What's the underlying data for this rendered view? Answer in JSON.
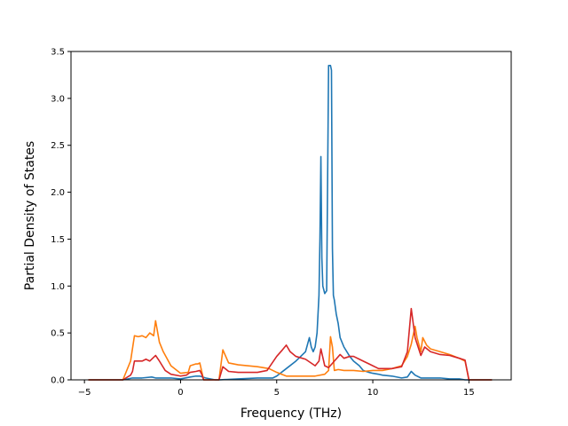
{
  "chart_data": {
    "type": "line",
    "title": "",
    "xlabel": "Frequency (THz)",
    "ylabel": "Partial Density of States",
    "xlim": [
      -5.7,
      17.2
    ],
    "ylim": [
      0,
      3.5
    ],
    "xticks": [
      -5,
      0,
      5,
      10,
      15
    ],
    "yticks": [
      0.0,
      0.5,
      1.0,
      1.5,
      2.0,
      2.5,
      3.0,
      3.5
    ],
    "grid": false,
    "legend": "none",
    "series": [
      {
        "color": "#1f77b4",
        "x": [
          -4.8,
          -3.0,
          -2.5,
          -2.0,
          -1.5,
          -1.3,
          -1.0,
          -0.5,
          0.0,
          0.5,
          0.8,
          1.0,
          1.3,
          1.8,
          2.0,
          3.0,
          4.0,
          4.8,
          5.0,
          5.5,
          6.0,
          6.5,
          6.7,
          6.8,
          6.9,
          7.0,
          7.1,
          7.2,
          7.25,
          7.3,
          7.35,
          7.4,
          7.5,
          7.6,
          7.7,
          7.75,
          7.8,
          7.85,
          7.9,
          7.95,
          8.0,
          8.1,
          8.2,
          8.3,
          8.5,
          8.8,
          9.0,
          9.3,
          9.5,
          9.8,
          10.0,
          10.3,
          10.5,
          11.0,
          11.5,
          11.8,
          12.0,
          12.2,
          12.5,
          13.0,
          13.5,
          14.0,
          14.5,
          14.8,
          15.0,
          16.2
        ],
        "y": [
          0.0,
          0.0,
          0.02,
          0.02,
          0.03,
          0.02,
          0.02,
          0.02,
          0.01,
          0.03,
          0.04,
          0.04,
          0.02,
          0.0,
          0.0,
          0.01,
          0.02,
          0.02,
          0.04,
          0.12,
          0.2,
          0.3,
          0.45,
          0.35,
          0.3,
          0.35,
          0.5,
          0.9,
          1.5,
          2.38,
          1.3,
          1.0,
          0.92,
          0.95,
          3.35,
          3.35,
          3.35,
          3.3,
          1.4,
          0.9,
          0.85,
          0.7,
          0.6,
          0.45,
          0.35,
          0.25,
          0.2,
          0.15,
          0.1,
          0.08,
          0.07,
          0.06,
          0.05,
          0.04,
          0.02,
          0.03,
          0.09,
          0.05,
          0.02,
          0.02,
          0.02,
          0.01,
          0.01,
          0.0,
          0.0,
          0.0
        ]
      },
      {
        "color": "#ff7f0e",
        "x": [
          -4.8,
          -3.0,
          -2.6,
          -2.4,
          -2.2,
          -2.0,
          -1.8,
          -1.6,
          -1.4,
          -1.3,
          -1.1,
          -0.9,
          -0.5,
          0.0,
          0.4,
          0.5,
          0.8,
          0.9,
          1.0,
          1.2,
          2.0,
          2.2,
          2.5,
          3.0,
          4.0,
          4.6,
          5.0,
          5.5,
          6.0,
          6.5,
          7.0,
          7.5,
          7.7,
          7.8,
          7.9,
          8.0,
          8.2,
          8.5,
          9.0,
          9.5,
          10.0,
          10.5,
          11.0,
          11.5,
          11.8,
          12.0,
          12.2,
          12.3,
          12.5,
          12.6,
          12.8,
          13.0,
          13.5,
          14.0,
          14.5,
          14.8,
          15.0,
          16.2
        ],
        "y": [
          0.0,
          0.0,
          0.2,
          0.47,
          0.46,
          0.47,
          0.45,
          0.5,
          0.47,
          0.63,
          0.4,
          0.3,
          0.15,
          0.07,
          0.08,
          0.15,
          0.17,
          0.17,
          0.18,
          0.0,
          0.0,
          0.32,
          0.18,
          0.16,
          0.14,
          0.12,
          0.08,
          0.04,
          0.04,
          0.04,
          0.04,
          0.06,
          0.1,
          0.46,
          0.35,
          0.1,
          0.11,
          0.1,
          0.1,
          0.09,
          0.1,
          0.1,
          0.12,
          0.15,
          0.25,
          0.38,
          0.57,
          0.45,
          0.3,
          0.45,
          0.37,
          0.33,
          0.3,
          0.27,
          0.23,
          0.2,
          0.0,
          0.0
        ]
      },
      {
        "color": "#d62728",
        "x": [
          -4.8,
          -3.0,
          -2.6,
          -2.5,
          -2.4,
          -2.2,
          -2.0,
          -1.8,
          -1.6,
          -1.5,
          -1.3,
          -1.1,
          -0.8,
          -0.5,
          0.0,
          0.3,
          0.5,
          0.8,
          1.0,
          1.1,
          1.2,
          2.0,
          2.2,
          2.5,
          3.0,
          3.5,
          4.0,
          4.5,
          5.0,
          5.3,
          5.5,
          5.7,
          6.0,
          6.5,
          7.0,
          7.2,
          7.3,
          7.5,
          7.7,
          8.0,
          8.3,
          8.5,
          8.8,
          9.0,
          9.3,
          9.5,
          9.8,
          10.0,
          10.3,
          11.0,
          11.5,
          11.8,
          12.0,
          12.2,
          12.5,
          12.7,
          13.0,
          13.5,
          14.0,
          14.5,
          14.8,
          15.0,
          16.2
        ],
        "y": [
          0.0,
          0.0,
          0.05,
          0.09,
          0.2,
          0.2,
          0.2,
          0.22,
          0.2,
          0.22,
          0.26,
          0.2,
          0.1,
          0.06,
          0.04,
          0.05,
          0.08,
          0.09,
          0.1,
          0.06,
          0.0,
          0.0,
          0.14,
          0.09,
          0.08,
          0.08,
          0.08,
          0.1,
          0.25,
          0.32,
          0.37,
          0.3,
          0.25,
          0.22,
          0.15,
          0.2,
          0.33,
          0.15,
          0.13,
          0.2,
          0.27,
          0.23,
          0.25,
          0.25,
          0.22,
          0.2,
          0.17,
          0.15,
          0.12,
          0.12,
          0.14,
          0.3,
          0.76,
          0.45,
          0.26,
          0.35,
          0.3,
          0.27,
          0.26,
          0.23,
          0.21,
          0.0,
          0.0
        ]
      }
    ]
  }
}
